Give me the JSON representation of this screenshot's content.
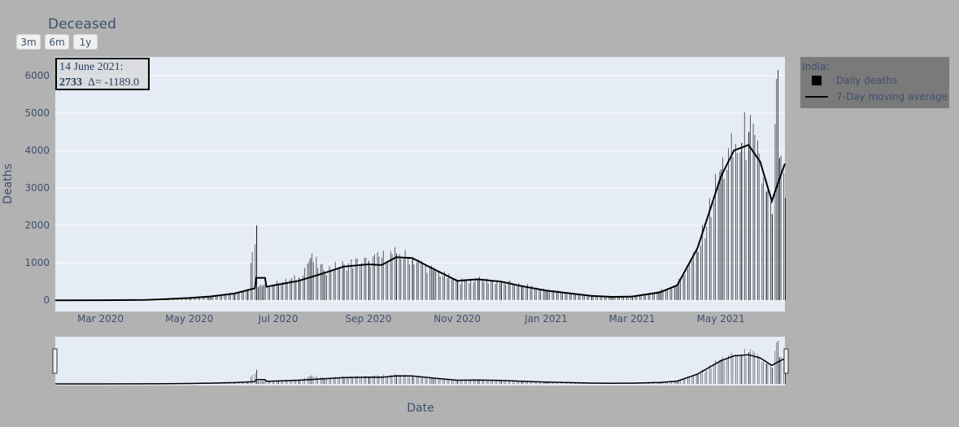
{
  "chart_data": {
    "type": "bar",
    "title": "Deceased",
    "xlabel": "Date",
    "ylabel": "Deaths",
    "ylim": [
      -300,
      6500
    ],
    "xlim": [
      "2020-01-30",
      "2021-06-14"
    ],
    "yticks": [
      0,
      1000,
      2000,
      3000,
      4000,
      5000,
      6000
    ],
    "xticks": [
      "2020-03-01",
      "2020-05-01",
      "2020-07-01",
      "2020-09-01",
      "2020-11-01",
      "2021-01-01",
      "2021-03-01",
      "2021-05-01"
    ],
    "xtick_labels": [
      "Mar 2020",
      "May 2020",
      "Jul 2020",
      "Sep 2020",
      "Nov 2020",
      "Jan 2021",
      "Mar 2021",
      "May 2021"
    ],
    "grid": true,
    "legend_placement": "right",
    "legend_title": "India:",
    "series": [
      {
        "name": "Daily deaths",
        "type": "bar",
        "color": "#000000",
        "points": [
          [
            "2020-01-30",
            0
          ],
          [
            "2020-03-01",
            2
          ],
          [
            "2020-03-20",
            5
          ],
          [
            "2020-04-01",
            15
          ],
          [
            "2020-04-15",
            40
          ],
          [
            "2020-05-01",
            70
          ],
          [
            "2020-05-15",
            110
          ],
          [
            "2020-06-01",
            200
          ],
          [
            "2020-06-10",
            300
          ],
          [
            "2020-06-16",
            2000
          ],
          [
            "2020-06-17",
            350
          ],
          [
            "2020-06-20",
            380
          ],
          [
            "2020-07-01",
            450
          ],
          [
            "2020-07-15",
            600
          ],
          [
            "2020-07-23",
            1130
          ],
          [
            "2020-08-01",
            800
          ],
          [
            "2020-08-15",
            950
          ],
          [
            "2020-09-01",
            1050
          ],
          [
            "2020-09-20",
            1250
          ],
          [
            "2020-10-01",
            1100
          ],
          [
            "2020-10-15",
            800
          ],
          [
            "2020-11-01",
            500
          ],
          [
            "2020-11-15",
            550
          ],
          [
            "2020-12-01",
            480
          ],
          [
            "2020-12-15",
            400
          ],
          [
            "2021-01-01",
            270
          ],
          [
            "2021-02-01",
            120
          ],
          [
            "2021-02-15",
            90
          ],
          [
            "2021-03-01",
            110
          ],
          [
            "2021-03-20",
            250
          ],
          [
            "2021-04-01",
            450
          ],
          [
            "2021-04-15",
            1300
          ],
          [
            "2021-05-01",
            3500
          ],
          [
            "2021-05-15",
            4200
          ],
          [
            "2021-05-20",
            4500
          ],
          [
            "2021-06-01",
            2900
          ],
          [
            "2021-06-05",
            2300
          ],
          [
            "2021-06-09",
            6150
          ],
          [
            "2021-06-10",
            3800
          ],
          [
            "2021-06-14",
            2733
          ]
        ]
      },
      {
        "name": "7-Day moving average",
        "type": "line",
        "color": "#000000",
        "points": [
          [
            "2020-01-30",
            0
          ],
          [
            "2020-03-01",
            1
          ],
          [
            "2020-04-01",
            10
          ],
          [
            "2020-04-15",
            30
          ],
          [
            "2020-05-01",
            60
          ],
          [
            "2020-05-15",
            100
          ],
          [
            "2020-06-01",
            180
          ],
          [
            "2020-06-15",
            320
          ],
          [
            "2020-06-16",
            600
          ],
          [
            "2020-06-22",
            600
          ],
          [
            "2020-06-23",
            360
          ],
          [
            "2020-07-01",
            420
          ],
          [
            "2020-07-15",
            520
          ],
          [
            "2020-08-01",
            720
          ],
          [
            "2020-08-15",
            900
          ],
          [
            "2020-09-01",
            960
          ],
          [
            "2020-09-10",
            940
          ],
          [
            "2020-09-20",
            1150
          ],
          [
            "2020-10-01",
            1130
          ],
          [
            "2020-10-15",
            850
          ],
          [
            "2020-11-01",
            520
          ],
          [
            "2020-11-15",
            560
          ],
          [
            "2020-12-01",
            500
          ],
          [
            "2020-12-15",
            380
          ],
          [
            "2021-01-01",
            260
          ],
          [
            "2021-02-01",
            120
          ],
          [
            "2021-02-15",
            90
          ],
          [
            "2021-03-01",
            100
          ],
          [
            "2021-03-20",
            210
          ],
          [
            "2021-04-01",
            400
          ],
          [
            "2021-04-15",
            1400
          ],
          [
            "2021-05-01",
            3300
          ],
          [
            "2021-05-10",
            4000
          ],
          [
            "2021-05-20",
            4150
          ],
          [
            "2021-05-28",
            3700
          ],
          [
            "2021-06-05",
            2650
          ],
          [
            "2021-06-09",
            3100
          ],
          [
            "2021-06-14",
            3650
          ]
        ]
      }
    ],
    "annotation": {
      "date": "14 June 2021:",
      "value": "2733",
      "delta": "Δ= -1189.0"
    },
    "range_buttons": [
      "3m",
      "6m",
      "1y"
    ]
  }
}
